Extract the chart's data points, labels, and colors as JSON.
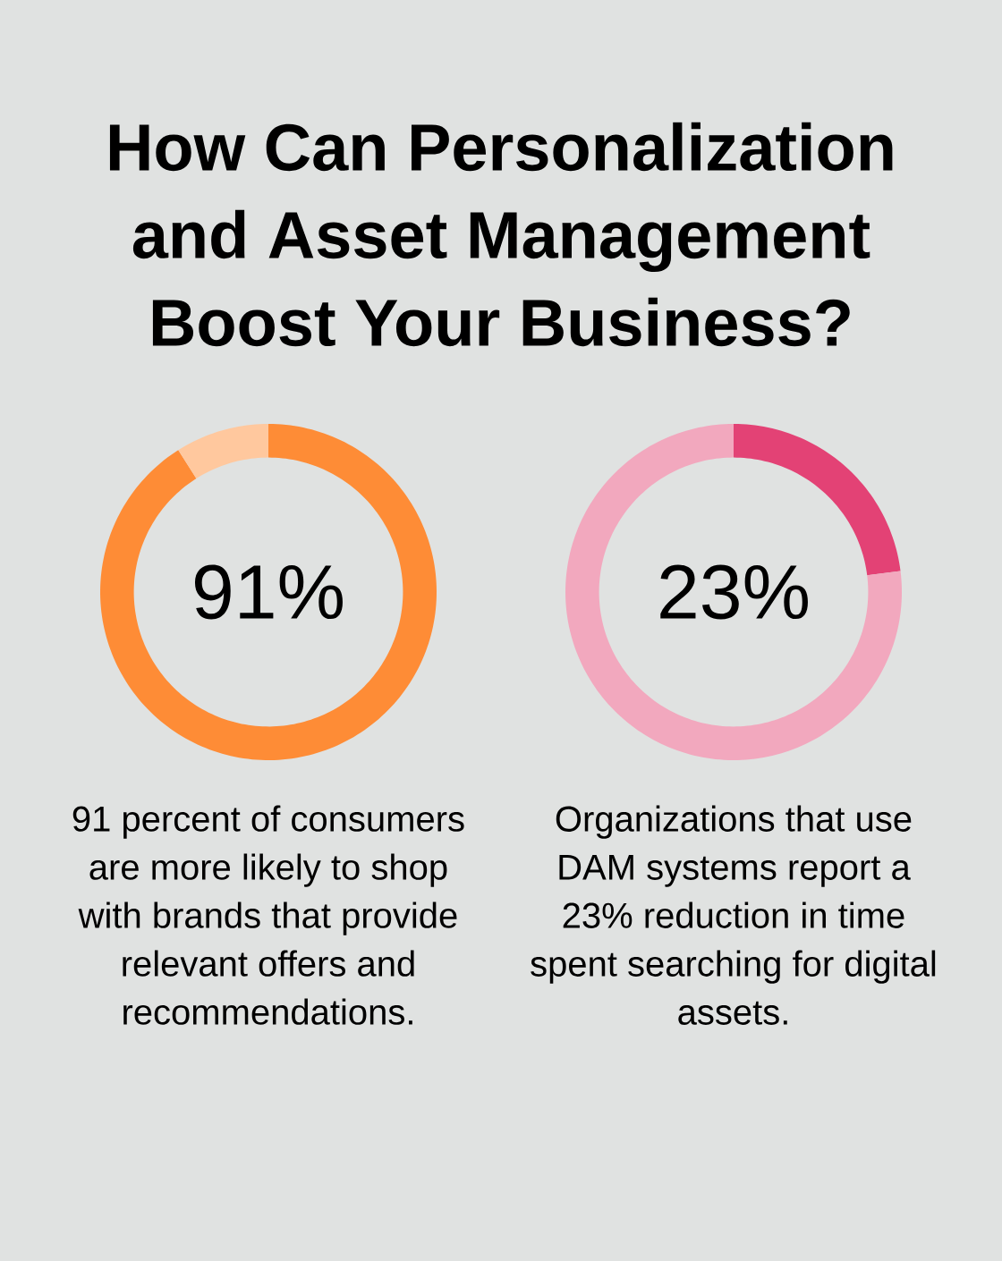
{
  "chart_data": [
    {
      "type": "donut",
      "title": "How Can Personalization and Asset Management Boost Your Business?",
      "categories": [
        null,
        null
      ],
      "values": [
        91,
        9
      ],
      "colors": [
        "#fe8c36",
        "#ffc89e"
      ],
      "value_labels": [
        "91%",
        null
      ],
      "annotations": [
        "91 percent of consumers are more likely to shop with brands that provide relevant offers and recommendations."
      ]
    },
    {
      "type": "donut",
      "categories": [
        null,
        null
      ],
      "values": [
        23,
        77
      ],
      "colors": [
        "#e34275",
        "#f2a8be"
      ],
      "value_labels": [
        "23%",
        null
      ],
      "annotations": [
        "Organizations that use DAM systems report a 23% reduction in time spent searching for digital assets."
      ]
    }
  ]
}
